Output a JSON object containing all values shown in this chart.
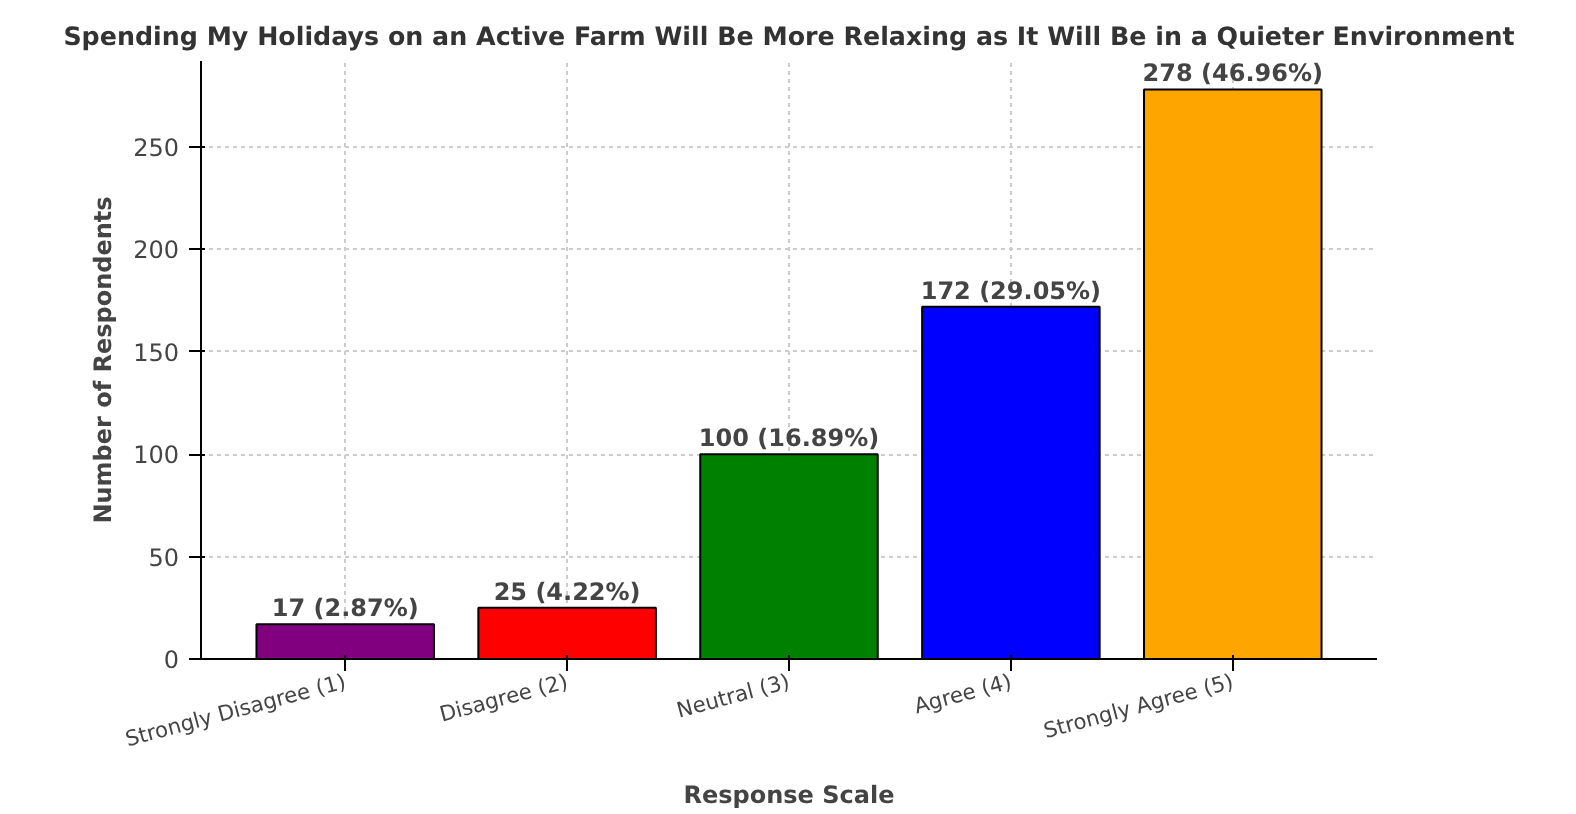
{
  "chart_data": {
    "type": "bar",
    "title": "Spending My Holidays on an Active Farm Will Be More Relaxing as It Will Be in a Quieter Environment",
    "xlabel": "Response Scale",
    "ylabel": "Number of Respondents",
    "categories": [
      "Strongly Disagree (1)",
      "Disagree (2)",
      "Neutral (3)",
      "Agree (4)",
      "Strongly Agree (5)"
    ],
    "values": [
      17,
      25,
      100,
      172,
      278
    ],
    "value_labels": [
      "17 (2.87%)",
      "25 (4.22%)",
      "100 (16.89%)",
      "172 (29.05%)",
      "278 (46.96%)"
    ],
    "colors": [
      "#800080",
      "#ff0000",
      "#008000",
      "#0000ff",
      "#ffa500"
    ],
    "ylim": [
      0,
      291.9
    ],
    "yticks": [
      0,
      50,
      100,
      150,
      200,
      250
    ],
    "grid": true
  }
}
